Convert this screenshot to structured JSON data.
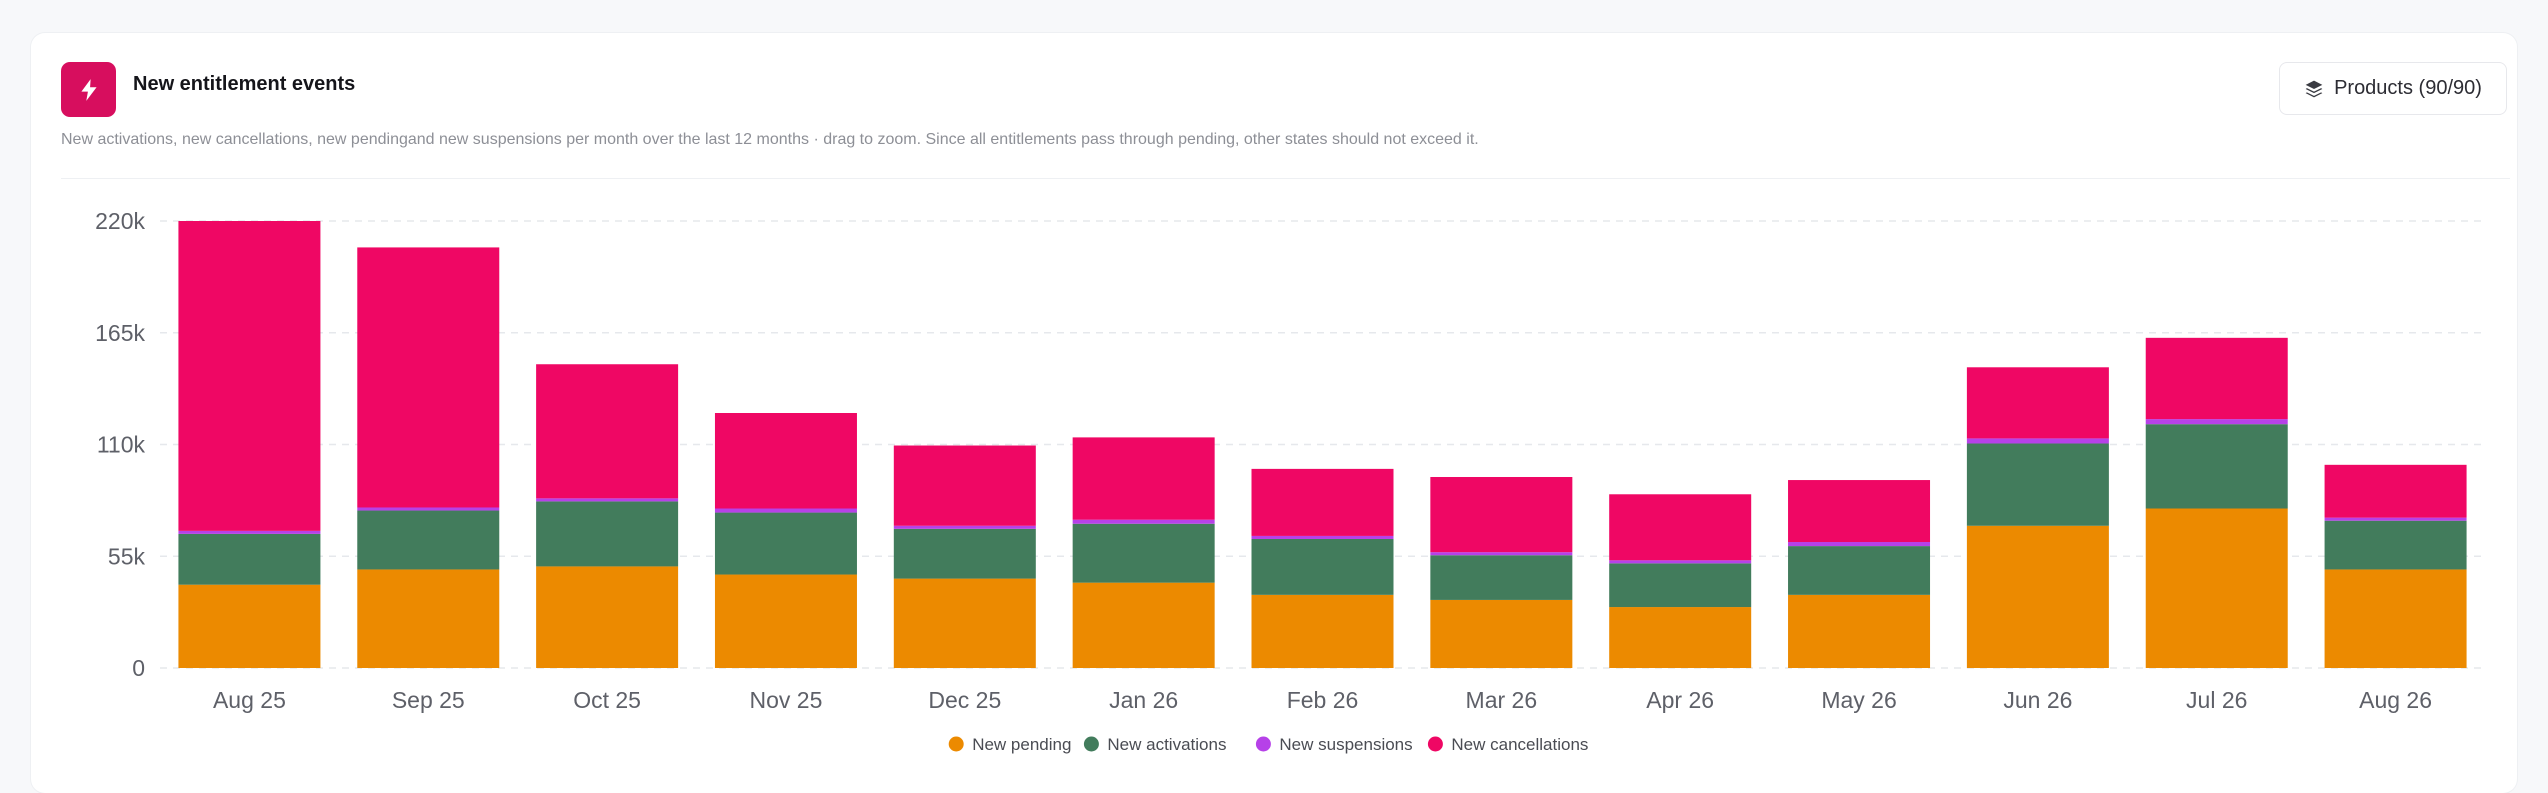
{
  "header": {
    "title": "New entitlement events",
    "subtitle": "New activations, new cancellations, new pendingand new suspensions per month over the last 12 months · drag to zoom. Since all entitlements pass through pending, other states should not exceed it.",
    "icon": "lightning-bolt-icon",
    "icon_bg": "#d70e5e"
  },
  "products_button": {
    "label": "Products (90/90)",
    "icon": "layers-icon"
  },
  "chart_data": {
    "type": "bar",
    "stacked": true,
    "categories": [
      "Aug 25",
      "Sep 25",
      "Oct 25",
      "Nov 25",
      "Dec 25",
      "Jan 26",
      "Feb 26",
      "Mar 26",
      "Apr 26",
      "May 26",
      "Jun 26",
      "Jul 26",
      "Aug 26"
    ],
    "ylim": [
      0,
      220000
    ],
    "yticks": [
      0,
      55000,
      110000,
      165000,
      220000
    ],
    "ytick_labels": [
      "0",
      "55k",
      "110k",
      "165k",
      "220k"
    ],
    "grid": true,
    "legend_position": "bottom",
    "series": [
      {
        "name": "New pending",
        "color": "#ec8a00",
        "values": [
          41000,
          48500,
          50000,
          46000,
          44000,
          42000,
          36000,
          33500,
          30000,
          36000,
          70000,
          78500,
          48500
        ]
      },
      {
        "name": "New activations",
        "color": "#427c5c",
        "values": [
          25000,
          29000,
          32000,
          30500,
          24500,
          29000,
          27500,
          22000,
          21500,
          24000,
          40500,
          41500,
          24000
        ]
      },
      {
        "name": "New suspensions",
        "color": "#b641e8",
        "values": [
          1500,
          1500,
          1500,
          2000,
          1500,
          2000,
          1500,
          1500,
          1500,
          2000,
          2500,
          2500,
          1500
        ]
      },
      {
        "name": "New cancellations",
        "color": "#ef0764",
        "values": [
          152500,
          128000,
          66000,
          47000,
          39500,
          40500,
          33000,
          37000,
          32500,
          30500,
          35000,
          40000,
          26000
        ]
      }
    ]
  }
}
